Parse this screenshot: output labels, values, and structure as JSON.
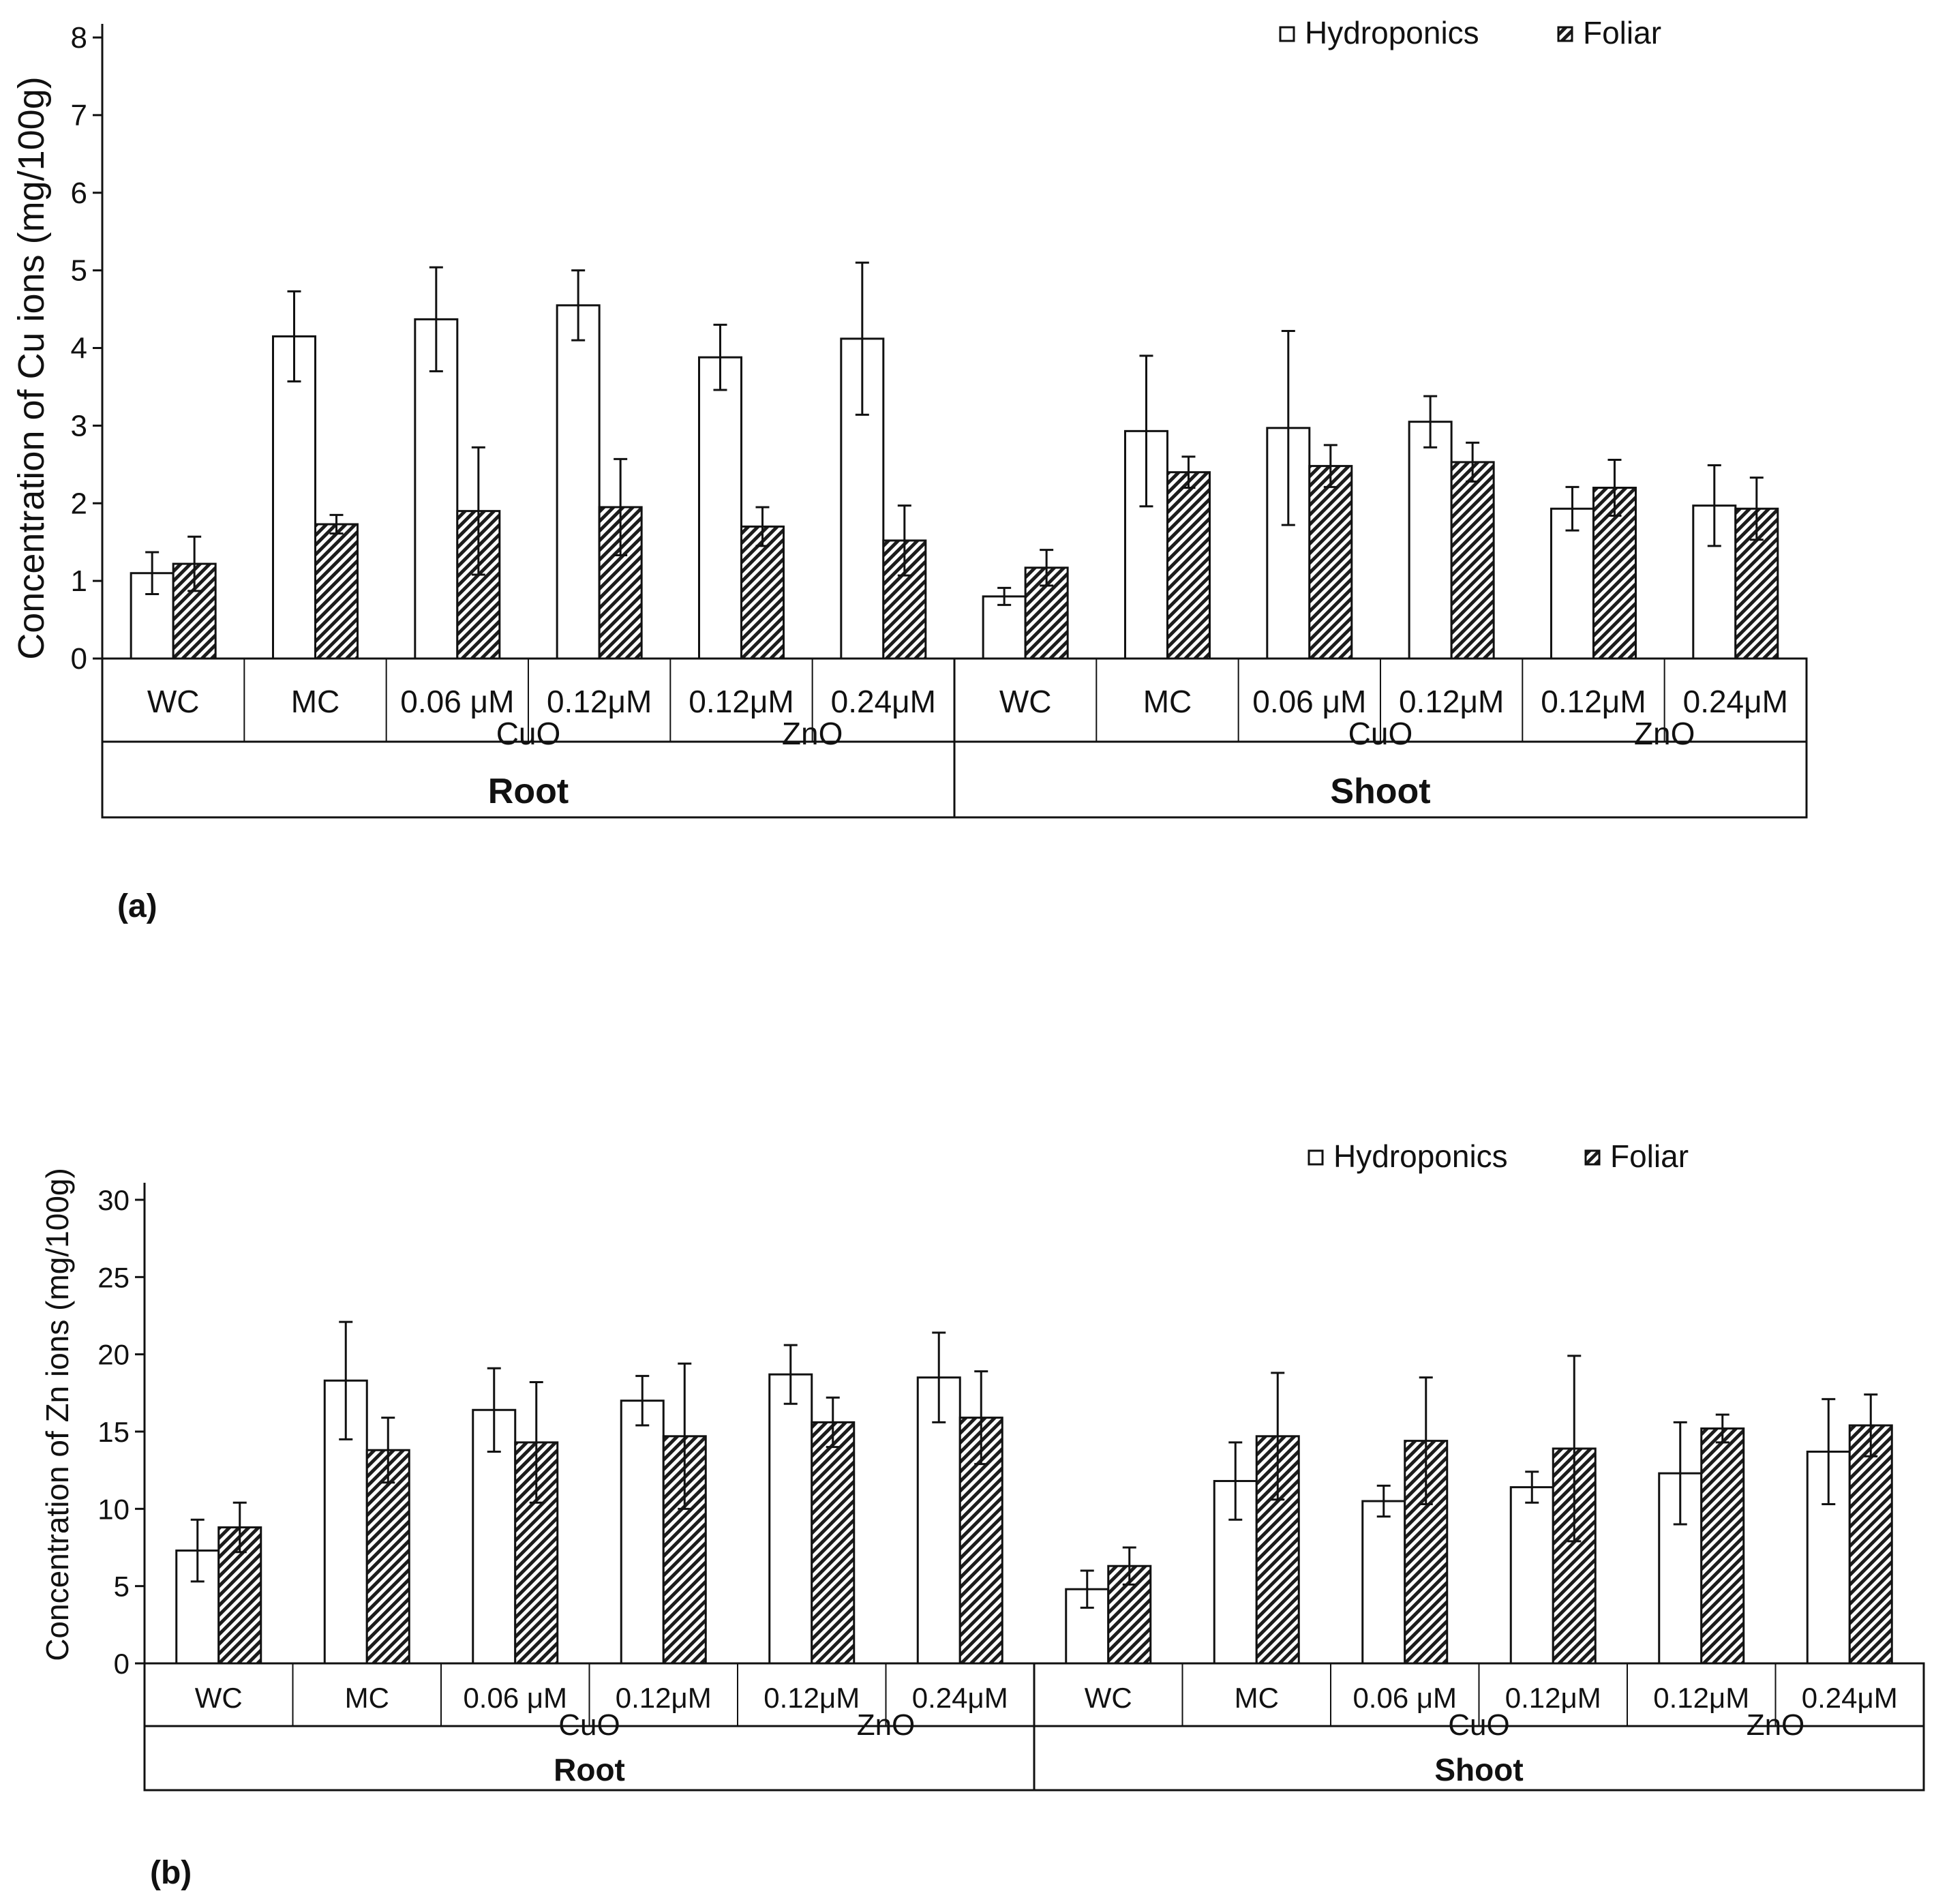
{
  "chart_data": [
    {
      "type": "bar",
      "panel_label": "(a)",
      "ylabel": "Concentration of Cu ions (mg/100g)",
      "ylim": [
        0,
        8
      ],
      "yticks": [
        "0",
        "1",
        "2",
        "3",
        "4",
        "5",
        "6",
        "7",
        "8"
      ],
      "categories": [
        "WC",
        "MC",
        "0.06 μM",
        "0.12μM",
        "0.12μM",
        "0.24μM",
        "WC",
        "MC",
        "0.06 μM",
        "0.12μM",
        "0.12μM",
        "0.24μM"
      ],
      "subgroups": [
        {
          "label": "CuO",
          "start": 2,
          "end": 3
        },
        {
          "label": "ZnO",
          "start": 4,
          "end": 5
        },
        {
          "label": "CuO",
          "start": 8,
          "end": 9
        },
        {
          "label": "ZnO",
          "start": 10,
          "end": 11
        }
      ],
      "groups": [
        {
          "label": "Root",
          "start": 0,
          "end": 5
        },
        {
          "label": "Shoot",
          "start": 6,
          "end": 11
        }
      ],
      "series": [
        {
          "name": "Hydroponics",
          "style": "open",
          "values": [
            1.1,
            4.15,
            4.37,
            4.55,
            3.88,
            4.12,
            0.8,
            2.93,
            2.97,
            3.05,
            1.93,
            1.97
          ],
          "errors": [
            0.27,
            0.58,
            0.67,
            0.45,
            0.42,
            0.98,
            0.11,
            0.97,
            1.25,
            0.33,
            0.28,
            0.52
          ]
        },
        {
          "name": "Foliar",
          "style": "hatched",
          "values": [
            1.22,
            1.73,
            1.9,
            1.95,
            1.7,
            1.52,
            1.17,
            2.4,
            2.48,
            2.53,
            2.2,
            1.93
          ],
          "errors": [
            0.35,
            0.12,
            0.82,
            0.62,
            0.25,
            0.45,
            0.23,
            0.2,
            0.27,
            0.25,
            0.36,
            0.4
          ]
        }
      ]
    },
    {
      "type": "bar",
      "panel_label": "(b)",
      "ylabel": "Concentration of Zn ions (mg/100g)",
      "ylim": [
        0,
        30
      ],
      "yticks": [
        "0",
        "5",
        "10",
        "15",
        "20",
        "25",
        "30"
      ],
      "categories": [
        "WC",
        "MC",
        "0.06 μM",
        "0.12μM",
        "0.12μM",
        "0.24μM",
        "WC",
        "MC",
        "0.06 μM",
        "0.12μM",
        "0.12μM",
        "0.24μM"
      ],
      "subgroups": [
        {
          "label": "CuO",
          "start": 2,
          "end": 3
        },
        {
          "label": "ZnO",
          "start": 4,
          "end": 5
        },
        {
          "label": "CuO",
          "start": 8,
          "end": 9
        },
        {
          "label": "ZnO",
          "start": 10,
          "end": 11
        }
      ],
      "groups": [
        {
          "label": "Root",
          "start": 0,
          "end": 5
        },
        {
          "label": "Shoot",
          "start": 6,
          "end": 11
        }
      ],
      "series": [
        {
          "name": "Hydroponics",
          "style": "open",
          "values": [
            7.3,
            18.3,
            16.4,
            17.0,
            18.7,
            18.5,
            4.8,
            11.8,
            10.5,
            11.4,
            12.3,
            13.7
          ],
          "errors": [
            2.0,
            3.8,
            2.7,
            1.6,
            1.9,
            2.9,
            1.2,
            2.5,
            1.0,
            1.0,
            3.3,
            3.4
          ]
        },
        {
          "name": "Foliar",
          "style": "hatched",
          "values": [
            8.8,
            13.8,
            14.3,
            14.7,
            15.6,
            15.9,
            6.3,
            14.7,
            14.4,
            13.9,
            15.2,
            15.4
          ],
          "errors": [
            1.6,
            2.1,
            3.9,
            4.7,
            1.6,
            3.0,
            1.2,
            4.1,
            4.1,
            6.0,
            0.9,
            2.0
          ]
        }
      ]
    }
  ]
}
